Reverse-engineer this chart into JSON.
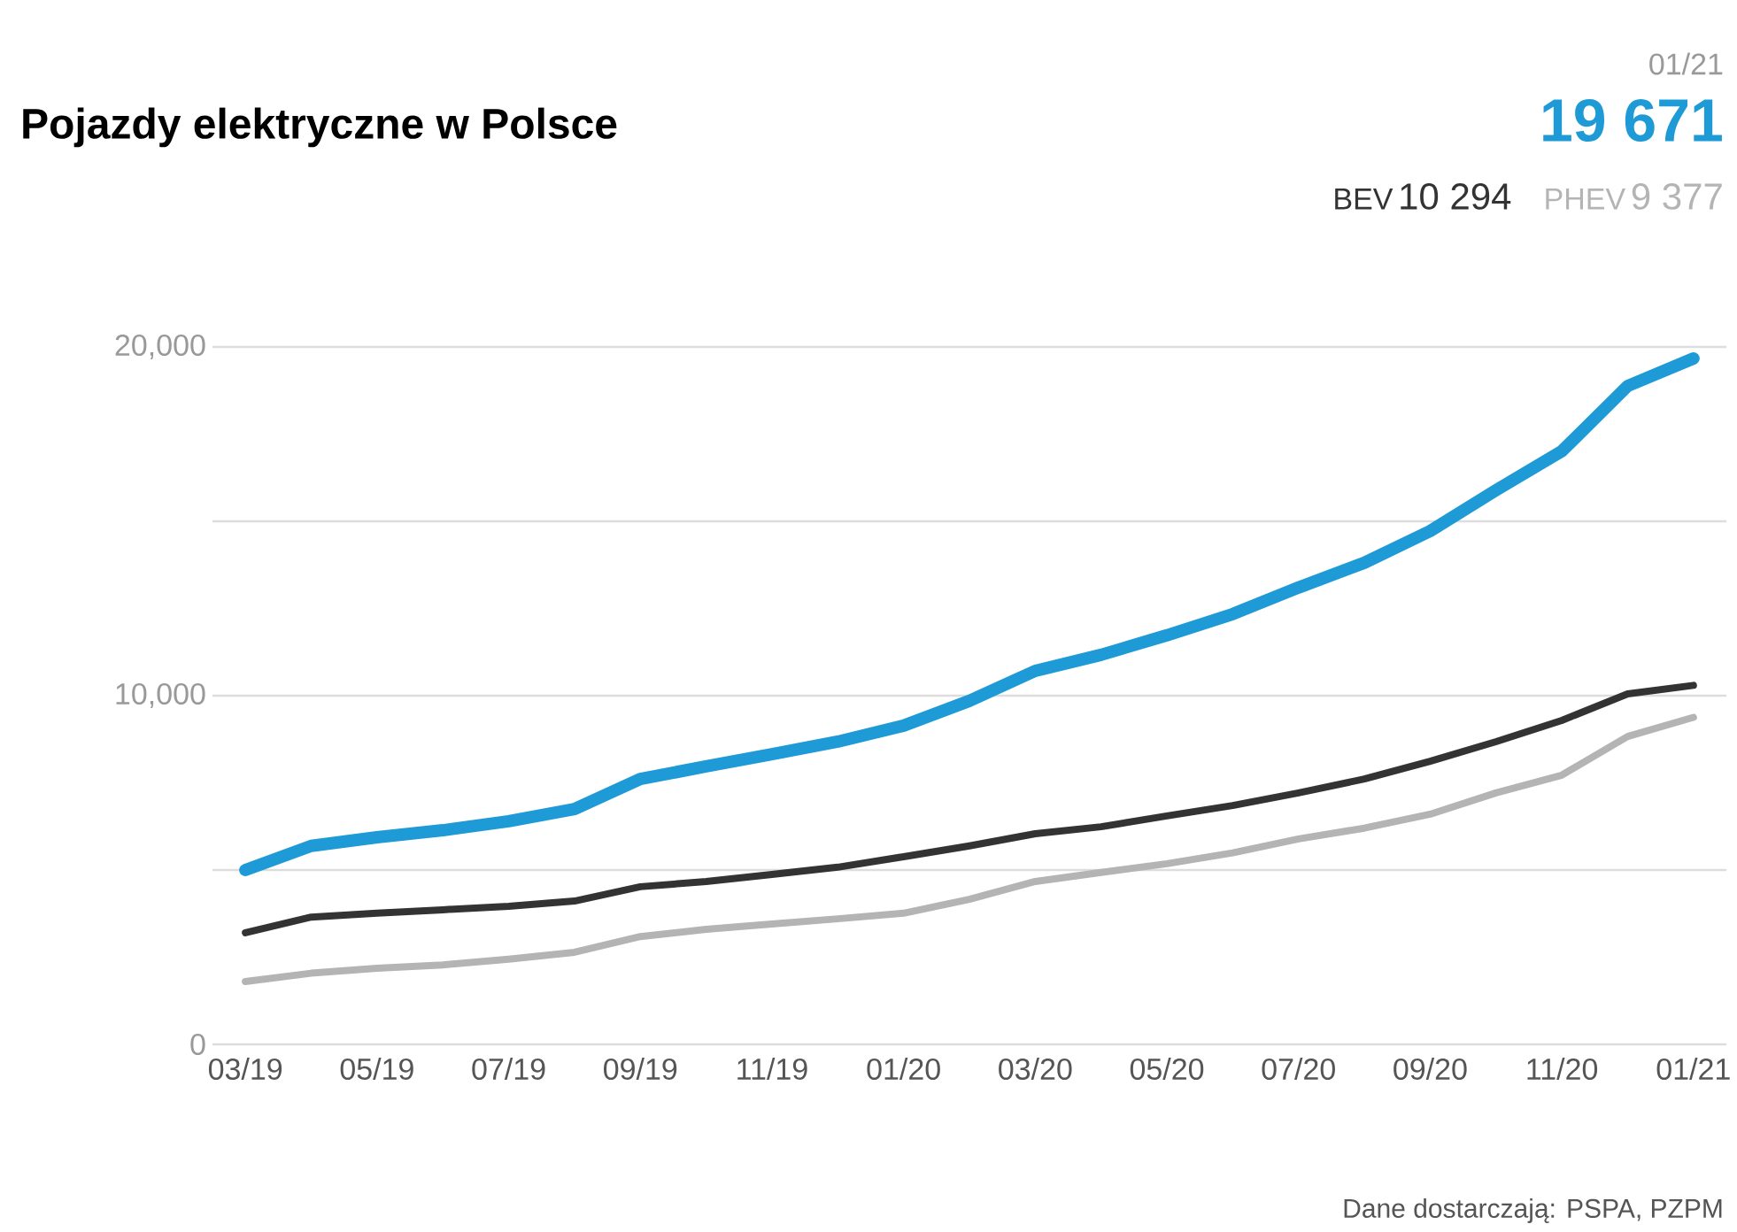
{
  "chart_data": {
    "type": "line",
    "title": "Pojazdy elektryczne w Polsce",
    "categories": [
      "03/19",
      null,
      "05/19",
      null,
      "07/19",
      null,
      "09/19",
      null,
      "11/19",
      null,
      "01/20",
      null,
      "03/20",
      null,
      "05/20",
      null,
      "07/20",
      null,
      "09/20",
      null,
      "11/20",
      null,
      "01/21"
    ],
    "series": [
      {
        "color": "#1e9ad6",
        "values": [
          5000,
          5690,
          5940,
          6140,
          6400,
          6750,
          7610,
          7970,
          8320,
          8680,
          9140,
          9850,
          10710,
          11170,
          11730,
          12340,
          13100,
          13810,
          14720,
          15890,
          17010,
          18880,
          19671
        ]
      },
      {
        "name": "BEV",
        "color": "#333333",
        "values": [
          3200,
          3650,
          3760,
          3860,
          3960,
          4110,
          4520,
          4670,
          4870,
          5080,
          5380,
          5690,
          6040,
          6240,
          6550,
          6850,
          7210,
          7610,
          8120,
          8680,
          9290,
          10050,
          10294
        ]
      },
      {
        "name": "PHEV",
        "color": "#b4b4b4",
        "values": [
          1800,
          2040,
          2180,
          2280,
          2440,
          2640,
          3090,
          3300,
          3450,
          3600,
          3760,
          4160,
          4670,
          4930,
          5180,
          5490,
          5890,
          6200,
          6600,
          7210,
          7720,
          8830,
          9377
        ]
      }
    ],
    "ylim": [
      0,
      20000
    ],
    "yticks": [
      {
        "value": 0,
        "label": "0"
      },
      {
        "value": 5000,
        "label": null
      },
      {
        "value": 10000,
        "label": "10,000"
      },
      {
        "value": 15000,
        "label": null
      },
      {
        "value": 20000,
        "label": "20,000"
      }
    ],
    "grid": "y",
    "annotations": [
      "01/21",
      "19 671",
      "10 294",
      "9 377",
      "Dane dostarczają: PSPA, PZPM"
    ]
  }
}
